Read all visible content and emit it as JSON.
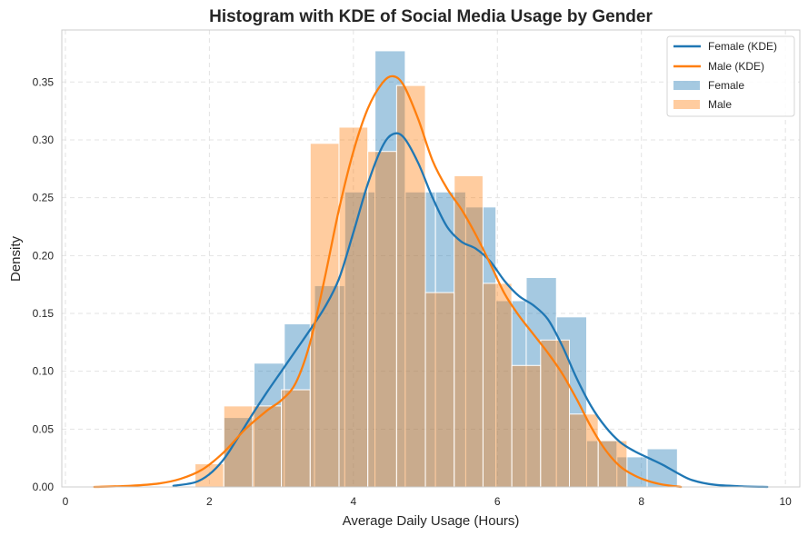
{
  "chart_data": {
    "type": "histogram",
    "title": "Histogram with KDE of Social Media Usage by Gender",
    "xlabel": "Average Daily Usage (Hours)",
    "ylabel": "Density",
    "xlim": [
      -0.05,
      10.2
    ],
    "ylim": [
      0,
      0.395
    ],
    "xticks": [
      0,
      2,
      4,
      6,
      8,
      10
    ],
    "xtick_labels": [
      "0",
      "2",
      "4",
      "6",
      "8",
      "10"
    ],
    "yticks": [
      0.0,
      0.05,
      0.1,
      0.15,
      0.2,
      0.25,
      0.3,
      0.35
    ],
    "ytick_labels": [
      "0.00",
      "0.05",
      "0.10",
      "0.15",
      "0.20",
      "0.25",
      "0.30",
      "0.35"
    ],
    "grid": true,
    "legend_position": "top-right",
    "legend": [
      {
        "label": "Female (KDE)",
        "kind": "line",
        "color": "#1f77b4"
      },
      {
        "label": "Male (KDE)",
        "kind": "line",
        "color": "#ff7f0e"
      },
      {
        "label": "Female",
        "kind": "patch",
        "color": "#1f77b4"
      },
      {
        "label": "Male",
        "kind": "patch",
        "color": "#ff7f0e"
      }
    ],
    "colors": {
      "female": "#1f77b4",
      "male": "#ff7f0e",
      "overlap": "#c8ab8c"
    },
    "series": [
      {
        "name": "Female",
        "kind": "histogram",
        "color": "#1f77b4",
        "bins": [
          {
            "x0": 2.2,
            "x1": 2.62,
            "value": 0.06
          },
          {
            "x0": 2.62,
            "x1": 3.04,
            "value": 0.107
          },
          {
            "x0": 3.04,
            "x1": 3.46,
            "value": 0.141
          },
          {
            "x0": 3.46,
            "x1": 3.88,
            "value": 0.174
          },
          {
            "x0": 3.88,
            "x1": 4.3,
            "value": 0.255
          },
          {
            "x0": 4.3,
            "x1": 4.72,
            "value": 0.377
          },
          {
            "x0": 4.72,
            "x1": 5.14,
            "value": 0.255
          },
          {
            "x0": 5.14,
            "x1": 5.56,
            "value": 0.255
          },
          {
            "x0": 5.56,
            "x1": 5.98,
            "value": 0.242
          },
          {
            "x0": 5.98,
            "x1": 6.4,
            "value": 0.161
          },
          {
            "x0": 6.4,
            "x1": 6.82,
            "value": 0.181
          },
          {
            "x0": 6.82,
            "x1": 7.24,
            "value": 0.147
          },
          {
            "x0": 7.24,
            "x1": 7.66,
            "value": 0.04
          },
          {
            "x0": 7.66,
            "x1": 8.08,
            "value": 0.026
          },
          {
            "x0": 8.08,
            "x1": 8.5,
            "value": 0.033
          }
        ]
      },
      {
        "name": "Male",
        "kind": "histogram",
        "color": "#ff7f0e",
        "bins": [
          {
            "x0": 1.8,
            "x1": 2.2,
            "value": 0.02
          },
          {
            "x0": 2.2,
            "x1": 2.6,
            "value": 0.07
          },
          {
            "x0": 2.6,
            "x1": 3.0,
            "value": 0.07
          },
          {
            "x0": 3.0,
            "x1": 3.4,
            "value": 0.084
          },
          {
            "x0": 3.4,
            "x1": 3.8,
            "value": 0.297
          },
          {
            "x0": 3.8,
            "x1": 4.2,
            "value": 0.311
          },
          {
            "x0": 4.2,
            "x1": 4.6,
            "value": 0.29
          },
          {
            "x0": 4.6,
            "x1": 5.0,
            "value": 0.347
          },
          {
            "x0": 5.0,
            "x1": 5.4,
            "value": 0.168
          },
          {
            "x0": 5.4,
            "x1": 5.8,
            "value": 0.269
          },
          {
            "x0": 5.8,
            "x1": 6.2,
            "value": 0.176
          },
          {
            "x0": 6.2,
            "x1": 6.6,
            "value": 0.105
          },
          {
            "x0": 6.6,
            "x1": 7.0,
            "value": 0.127
          },
          {
            "x0": 7.0,
            "x1": 7.4,
            "value": 0.063
          },
          {
            "x0": 7.4,
            "x1": 7.8,
            "value": 0.04
          }
        ]
      },
      {
        "name": "Female (KDE)",
        "kind": "line",
        "color": "#1f77b4",
        "points": [
          [
            1.5,
            0.001
          ],
          [
            1.8,
            0.004
          ],
          [
            2.0,
            0.011
          ],
          [
            2.2,
            0.024
          ],
          [
            2.4,
            0.043
          ],
          [
            2.6,
            0.063
          ],
          [
            2.8,
            0.082
          ],
          [
            3.0,
            0.1
          ],
          [
            3.2,
            0.118
          ],
          [
            3.4,
            0.136
          ],
          [
            3.6,
            0.155
          ],
          [
            3.8,
            0.18
          ],
          [
            4.0,
            0.22
          ],
          [
            4.2,
            0.262
          ],
          [
            4.4,
            0.294
          ],
          [
            4.55,
            0.305
          ],
          [
            4.7,
            0.302
          ],
          [
            4.9,
            0.28
          ],
          [
            5.1,
            0.25
          ],
          [
            5.3,
            0.225
          ],
          [
            5.5,
            0.212
          ],
          [
            5.7,
            0.206
          ],
          [
            5.9,
            0.195
          ],
          [
            6.1,
            0.178
          ],
          [
            6.3,
            0.165
          ],
          [
            6.5,
            0.157
          ],
          [
            6.7,
            0.145
          ],
          [
            6.9,
            0.122
          ],
          [
            7.1,
            0.094
          ],
          [
            7.3,
            0.07
          ],
          [
            7.5,
            0.052
          ],
          [
            7.7,
            0.039
          ],
          [
            7.9,
            0.031
          ],
          [
            8.1,
            0.025
          ],
          [
            8.3,
            0.019
          ],
          [
            8.5,
            0.012
          ],
          [
            8.7,
            0.006
          ],
          [
            9.0,
            0.002
          ],
          [
            9.4,
            0.0005
          ],
          [
            9.75,
            0.0
          ]
        ]
      },
      {
        "name": "Male (KDE)",
        "kind": "line",
        "color": "#ff7f0e",
        "points": [
          [
            0.4,
            0.0
          ],
          [
            0.9,
            0.001
          ],
          [
            1.3,
            0.003
          ],
          [
            1.6,
            0.007
          ],
          [
            1.9,
            0.015
          ],
          [
            2.2,
            0.03
          ],
          [
            2.5,
            0.05
          ],
          [
            2.8,
            0.066
          ],
          [
            3.0,
            0.075
          ],
          [
            3.2,
            0.09
          ],
          [
            3.4,
            0.125
          ],
          [
            3.6,
            0.18
          ],
          [
            3.8,
            0.24
          ],
          [
            4.0,
            0.29
          ],
          [
            4.2,
            0.327
          ],
          [
            4.4,
            0.349
          ],
          [
            4.55,
            0.355
          ],
          [
            4.7,
            0.347
          ],
          [
            4.9,
            0.318
          ],
          [
            5.1,
            0.282
          ],
          [
            5.3,
            0.258
          ],
          [
            5.5,
            0.24
          ],
          [
            5.7,
            0.218
          ],
          [
            5.9,
            0.193
          ],
          [
            6.1,
            0.167
          ],
          [
            6.3,
            0.148
          ],
          [
            6.5,
            0.132
          ],
          [
            6.7,
            0.116
          ],
          [
            6.9,
            0.098
          ],
          [
            7.1,
            0.076
          ],
          [
            7.3,
            0.052
          ],
          [
            7.5,
            0.032
          ],
          [
            7.7,
            0.018
          ],
          [
            7.9,
            0.01
          ],
          [
            8.1,
            0.005
          ],
          [
            8.3,
            0.002
          ],
          [
            8.55,
            0.0
          ]
        ]
      }
    ]
  }
}
